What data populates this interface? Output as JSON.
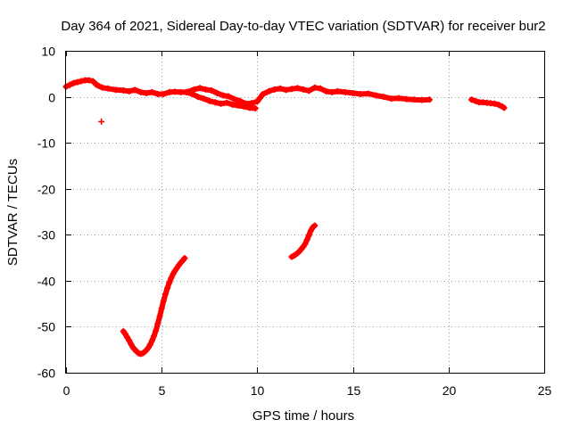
{
  "chart_data": {
    "type": "scatter",
    "title": "Day 364 of 2021, Sidereal Day-to-day VTEC variation (SDTVAR) for receiver bur2",
    "xlabel": "GPS time / hours",
    "ylabel": "SDTVAR / TECUs",
    "xlim": [
      0,
      25
    ],
    "ylim": [
      -60,
      10
    ],
    "xticks": [
      0,
      5,
      10,
      15,
      20,
      25
    ],
    "yticks": [
      10,
      0,
      -10,
      -20,
      -30,
      -40,
      -50,
      -60
    ],
    "grid": true,
    "series_color": "#ff0000",
    "series": [
      {
        "name": "main band",
        "x": [
          0.0,
          0.2,
          0.4,
          0.6,
          0.8,
          1.0,
          1.2,
          1.4,
          1.6,
          1.7,
          1.9,
          2.2,
          2.6,
          3.0,
          3.3,
          3.6,
          3.9,
          4.2,
          4.5,
          4.8,
          5.1,
          5.4,
          5.7,
          6.0,
          6.3,
          6.7,
          7.0,
          7.3,
          7.6,
          7.9,
          8.2,
          8.5,
          8.8,
          9.1,
          9.4,
          9.7,
          10.0,
          10.3,
          10.6,
          10.9,
          11.2,
          11.5,
          11.8,
          12.1,
          12.4,
          12.7,
          13.0,
          13.3,
          13.6,
          13.9,
          14.2,
          14.6,
          15.0,
          15.4,
          15.8,
          16.2,
          16.6,
          17.0,
          17.4,
          17.8,
          18.2,
          18.6,
          19.0
        ],
        "y": [
          2.2,
          2.6,
          3.0,
          3.2,
          3.4,
          3.6,
          3.6,
          3.4,
          2.6,
          2.4,
          2.0,
          1.8,
          1.5,
          1.4,
          1.2,
          1.5,
          1.0,
          0.8,
          1.0,
          0.6,
          0.6,
          1.0,
          1.1,
          1.0,
          1.0,
          1.6,
          1.9,
          1.6,
          1.4,
          0.8,
          0.3,
          0.1,
          -0.5,
          -0.9,
          -1.5,
          -1.4,
          -1.0,
          0.6,
          1.2,
          1.6,
          1.8,
          1.5,
          1.7,
          1.9,
          1.6,
          1.3,
          2.0,
          1.8,
          1.2,
          1.0,
          1.2,
          1.0,
          0.8,
          0.6,
          0.7,
          0.3,
          0.0,
          -0.4,
          -0.3,
          -0.5,
          -0.6,
          -0.7,
          -0.6
        ]
      },
      {
        "name": "branch low",
        "x": [
          6.3,
          6.6,
          6.9,
          7.2,
          7.5,
          7.8,
          8.1,
          8.4,
          8.7,
          9.0,
          9.3,
          9.6,
          9.9
        ],
        "y": [
          1.0,
          0.6,
          0.0,
          -0.4,
          -0.9,
          -1.2,
          -1.5,
          -1.3,
          -1.7,
          -1.9,
          -2.1,
          -2.4,
          -2.5
        ]
      },
      {
        "name": "isolated point",
        "x": [
          1.85
        ],
        "y": [
          -5.4
        ]
      },
      {
        "name": "deep arc",
        "x": [
          3.0,
          3.1,
          3.2,
          3.3,
          3.4,
          3.5,
          3.6,
          3.7,
          3.8,
          3.9,
          4.0,
          4.1,
          4.2,
          4.3,
          4.4,
          4.5,
          4.6,
          4.7,
          4.8,
          4.9,
          5.0,
          5.1,
          5.2,
          5.3,
          5.4,
          5.5,
          5.6,
          5.7,
          5.8,
          5.9,
          6.0,
          6.1,
          6.2
        ],
        "y": [
          -51.0,
          -51.6,
          -52.3,
          -53.0,
          -53.8,
          -54.5,
          -55.0,
          -55.4,
          -55.8,
          -55.9,
          -55.8,
          -55.5,
          -55.1,
          -54.6,
          -53.9,
          -53.0,
          -52.0,
          -50.8,
          -49.3,
          -47.7,
          -46.0,
          -44.4,
          -42.9,
          -41.6,
          -40.4,
          -39.4,
          -38.5,
          -37.8,
          -37.2,
          -36.6,
          -36.1,
          -35.6,
          -35.1
        ]
      },
      {
        "name": "mid arc",
        "x": [
          11.8,
          11.9,
          12.0,
          12.1,
          12.2,
          12.3,
          12.4,
          12.5,
          12.6,
          12.7,
          12.8,
          12.9,
          13.0
        ],
        "y": [
          -34.8,
          -34.6,
          -34.3,
          -34.0,
          -33.6,
          -33.1,
          -32.6,
          -32.0,
          -31.1,
          -30.1,
          -29.1,
          -28.4,
          -28.0
        ]
      },
      {
        "name": "late segment",
        "x": [
          21.2,
          21.4,
          21.6,
          21.8,
          22.0,
          22.2,
          22.4,
          22.6,
          22.8,
          22.9
        ],
        "y": [
          -0.6,
          -0.9,
          -1.2,
          -1.2,
          -1.3,
          -1.4,
          -1.5,
          -1.7,
          -2.1,
          -2.4
        ]
      }
    ]
  }
}
